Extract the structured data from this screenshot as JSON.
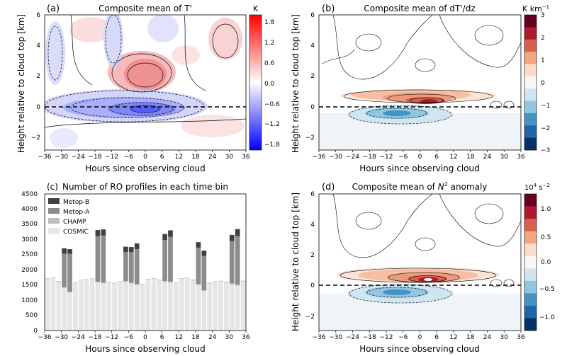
{
  "panels": {
    "a": {
      "tag": "(a)",
      "title": "Composite mean of T'",
      "cbar_unit": "K",
      "cbar_ticks": [
        "1.8",
        "1.2",
        "0.6",
        "0.0",
        "−0.6",
        "−1.2",
        "−1.8"
      ]
    },
    "b": {
      "tag": "(b)",
      "title": "Composite mean of dT'/dz",
      "cbar_unit": "K km",
      "cbar_unit_sup": "−1",
      "cbar_ticks": [
        "3",
        "2",
        "1",
        "0",
        "−1",
        "−2",
        "−3"
      ]
    },
    "c": {
      "tag": "(c)",
      "title": "Number of RO profiles in each time bin"
    },
    "d": {
      "tag": "(d)",
      "title_pre": "Composite mean of ",
      "title_n": "N",
      "title_sup": "2",
      "title_post": " anomaly",
      "cbar_unit": "10",
      "cbar_unit_sup": "4",
      "cbar_unit_post": " s",
      "cbar_unit_sup2": "−2",
      "cbar_ticks": [
        "1.0",
        "0.5",
        "0.0",
        "−0.5",
        "−1.0"
      ]
    }
  },
  "xlabel": "Hours since observing cloud",
  "ylabel": "Height relative to cloud top [km]",
  "x_ticks": [
    "−36",
    "−30",
    "−24",
    "−18",
    "−12",
    "−6",
    "0",
    "6",
    "12",
    "18",
    "24",
    "30",
    "36"
  ],
  "y_ticks_height": [
    "6",
    "4",
    "2",
    "0",
    "−2"
  ],
  "y_ticks_count": [
    "4500",
    "4000",
    "3500",
    "3000",
    "2500",
    "2000",
    "1500",
    "1000",
    "500",
    "0"
  ],
  "legend": [
    "Metop-B",
    "Metop-A",
    "CHAMP",
    "COSMIC"
  ],
  "colors": {
    "red": "#ff0000",
    "blue": "#0000ff",
    "rdbu": [
      "#053061",
      "#2166ac",
      "#4393c3",
      "#92c5de",
      "#d1e5f0",
      "#f7f7f7",
      "#fddbc7",
      "#f4a582",
      "#d6604d",
      "#b2182b",
      "#67001f"
    ],
    "metop_b": "#404040",
    "metop_a": "#8c8c8c",
    "champ": "#bfbfbf",
    "cosmic": "#e6e6e6"
  },
  "chart_data": {
    "type": "bar",
    "stacked": true,
    "title": "Number of RO profiles in each time bin",
    "xlabel": "Hours since observing cloud",
    "ylim": [
      0,
      4500
    ],
    "xlim": [
      -36,
      36
    ],
    "x": [
      -35,
      -33,
      -31,
      -29,
      -27,
      -25,
      -23,
      -21,
      -19,
      -17,
      -15,
      -13,
      -11,
      -9,
      -7,
      -5,
      -3,
      -1,
      1,
      3,
      5,
      7,
      9,
      11,
      13,
      15,
      17,
      19,
      21,
      23,
      25,
      27,
      29,
      31,
      33,
      35
    ],
    "series": [
      {
        "name": "COSMIC",
        "values": [
          1700,
          1740,
          1600,
          1400,
          1250,
          1560,
          1650,
          1670,
          1700,
          1580,
          1550,
          1580,
          1550,
          1600,
          1600,
          1550,
          1500,
          1520,
          1680,
          1700,
          1650,
          1600,
          1580,
          1560,
          1700,
          1720,
          1650,
          1500,
          1300,
          1550,
          1600,
          1620,
          1580,
          1520,
          1480,
          1620
        ]
      },
      {
        "name": "CHAMP",
        "values": [
          20,
          20,
          30,
          30,
          30,
          20,
          20,
          20,
          20,
          30,
          30,
          20,
          20,
          20,
          30,
          30,
          30,
          20,
          20,
          20,
          30,
          30,
          30,
          20,
          20,
          20,
          30,
          30,
          30,
          20,
          20,
          20,
          30,
          30,
          30,
          20
        ]
      },
      {
        "name": "Metop-A",
        "values": [
          0,
          0,
          0,
          1100,
          1250,
          0,
          0,
          0,
          0,
          1500,
          1550,
          0,
          0,
          0,
          950,
          1000,
          1150,
          0,
          0,
          0,
          0,
          1350,
          1480,
          0,
          0,
          0,
          0,
          1200,
          1130,
          0,
          0,
          0,
          0,
          1400,
          1600,
          0
        ]
      },
      {
        "name": "Metop-B",
        "values": [
          0,
          0,
          0,
          180,
          150,
          0,
          0,
          0,
          0,
          200,
          200,
          0,
          0,
          0,
          180,
          170,
          190,
          0,
          0,
          0,
          0,
          200,
          210,
          0,
          0,
          0,
          0,
          180,
          170,
          0,
          0,
          0,
          0,
          200,
          230,
          0
        ]
      }
    ]
  }
}
